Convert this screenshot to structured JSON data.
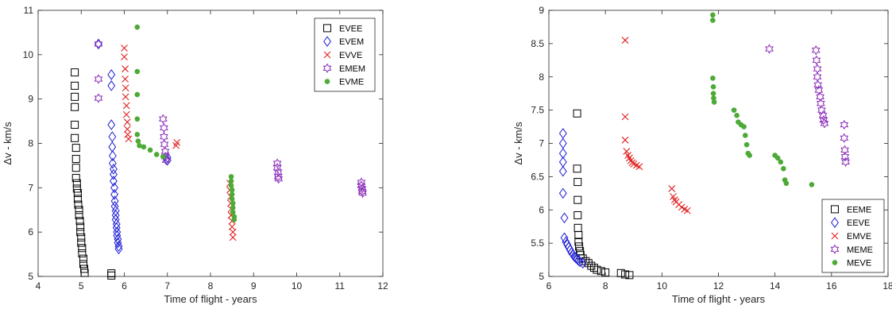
{
  "chart_data": [
    {
      "type": "scatter",
      "xlabel": "Time of flight - years",
      "ylabel": "Δv - km/s",
      "xlim": [
        4,
        12
      ],
      "ylim": [
        5,
        11
      ],
      "xticks": [
        "4",
        "5",
        "6",
        "7",
        "8",
        "9",
        "10",
        "11",
        "12"
      ],
      "yticks": [
        "5",
        "6",
        "7",
        "8",
        "9",
        "10",
        "11"
      ],
      "legend_position": "top-right",
      "series": [
        {
          "name": "EVEE",
          "marker": "square",
          "color": "#000000",
          "points": [
            [
              4.85,
              9.6
            ],
            [
              4.85,
              9.3
            ],
            [
              4.85,
              9.05
            ],
            [
              4.85,
              8.82
            ],
            [
              4.85,
              8.42
            ],
            [
              4.85,
              8.12
            ],
            [
              4.88,
              7.9
            ],
            [
              4.88,
              7.65
            ],
            [
              4.88,
              7.45
            ],
            [
              4.88,
              7.22
            ],
            [
              4.9,
              7.1
            ],
            [
              4.9,
              6.98
            ],
            [
              4.92,
              6.88
            ],
            [
              4.92,
              6.75
            ],
            [
              4.93,
              6.62
            ],
            [
              4.95,
              6.5
            ],
            [
              4.95,
              6.38
            ],
            [
              4.97,
              6.25
            ],
            [
              4.98,
              6.12
            ],
            [
              4.98,
              6.0
            ],
            [
              5.0,
              5.88
            ],
            [
              5.0,
              5.76
            ],
            [
              5.02,
              5.64
            ],
            [
              5.02,
              5.52
            ],
            [
              5.05,
              5.4
            ],
            [
              5.05,
              5.28
            ],
            [
              5.07,
              5.17
            ],
            [
              5.08,
              5.08
            ],
            [
              5.7,
              5.02
            ],
            [
              5.7,
              5.07
            ]
          ]
        },
        {
          "name": "EVEM",
          "marker": "diamond",
          "color": "#1f1fd6",
          "points": [
            [
              5.4,
              10.24
            ],
            [
              5.7,
              9.55
            ],
            [
              5.7,
              9.3
            ],
            [
              5.7,
              8.42
            ],
            [
              5.72,
              8.15
            ],
            [
              5.72,
              7.92
            ],
            [
              5.73,
              7.72
            ],
            [
              5.73,
              7.55
            ],
            [
              5.75,
              7.42
            ],
            [
              5.75,
              7.3
            ],
            [
              5.75,
              7.15
            ],
            [
              5.77,
              7.0
            ],
            [
              5.77,
              6.85
            ],
            [
              5.78,
              6.7
            ],
            [
              5.78,
              6.58
            ],
            [
              5.8,
              6.48
            ],
            [
              5.8,
              6.38
            ],
            [
              5.8,
              6.28
            ],
            [
              5.82,
              6.18
            ],
            [
              5.82,
              6.1
            ],
            [
              5.83,
              6.0
            ],
            [
              5.83,
              5.92
            ],
            [
              5.85,
              5.84
            ],
            [
              5.85,
              5.76
            ],
            [
              5.87,
              5.68
            ],
            [
              5.87,
              5.62
            ],
            [
              7.0,
              7.62
            ],
            [
              7.0,
              7.68
            ]
          ]
        },
        {
          "name": "EVVE",
          "marker": "x",
          "color": "#e02020",
          "points": [
            [
              6.0,
              10.15
            ],
            [
              6.0,
              9.95
            ],
            [
              6.02,
              9.68
            ],
            [
              6.02,
              9.45
            ],
            [
              6.03,
              9.25
            ],
            [
              6.03,
              9.05
            ],
            [
              6.05,
              8.85
            ],
            [
              6.05,
              8.65
            ],
            [
              6.07,
              8.48
            ],
            [
              6.07,
              8.32
            ],
            [
              6.08,
              8.2
            ],
            [
              6.1,
              8.1
            ],
            [
              7.2,
              7.95
            ],
            [
              7.22,
              8.02
            ],
            [
              8.45,
              7.1
            ],
            [
              8.45,
              6.95
            ],
            [
              8.47,
              6.8
            ],
            [
              8.47,
              6.65
            ],
            [
              8.48,
              6.52
            ],
            [
              8.48,
              6.38
            ],
            [
              8.5,
              6.25
            ],
            [
              8.5,
              6.12
            ],
            [
              8.52,
              6.0
            ],
            [
              8.52,
              5.88
            ]
          ]
        },
        {
          "name": "EMEM",
          "marker": "star",
          "color": "#8a2bb8",
          "points": [
            [
              5.4,
              9.45
            ],
            [
              5.4,
              9.02
            ],
            [
              5.4,
              10.24
            ],
            [
              6.9,
              8.55
            ],
            [
              6.92,
              8.35
            ],
            [
              6.92,
              8.15
            ],
            [
              6.93,
              7.98
            ],
            [
              6.95,
              7.82
            ],
            [
              6.95,
              7.7
            ],
            [
              6.97,
              7.62
            ],
            [
              9.55,
              7.55
            ],
            [
              9.55,
              7.45
            ],
            [
              9.57,
              7.35
            ],
            [
              9.57,
              7.25
            ],
            [
              9.58,
              7.2
            ],
            [
              11.5,
              7.12
            ],
            [
              11.5,
              7.05
            ],
            [
              11.52,
              6.98
            ],
            [
              11.52,
              6.92
            ],
            [
              11.53,
              6.88
            ]
          ]
        },
        {
          "name": "EVME",
          "marker": "dot",
          "color": "#4daa36",
          "points": [
            [
              6.3,
              10.62
            ],
            [
              6.3,
              9.62
            ],
            [
              6.3,
              9.1
            ],
            [
              6.3,
              8.55
            ],
            [
              6.3,
              8.2
            ],
            [
              6.32,
              8.05
            ],
            [
              6.35,
              7.95
            ],
            [
              6.45,
              7.92
            ],
            [
              6.6,
              7.85
            ],
            [
              6.75,
              7.75
            ],
            [
              6.9,
              7.7
            ],
            [
              8.48,
              7.25
            ],
            [
              8.48,
              7.15
            ],
            [
              8.48,
              7.05
            ],
            [
              8.5,
              6.95
            ],
            [
              8.5,
              6.85
            ],
            [
              8.5,
              6.75
            ],
            [
              8.52,
              6.65
            ],
            [
              8.52,
              6.55
            ],
            [
              8.52,
              6.45
            ],
            [
              8.55,
              6.35
            ],
            [
              8.55,
              6.28
            ]
          ]
        }
      ]
    },
    {
      "type": "scatter",
      "xlabel": "Time of flight - years",
      "ylabel": "Δv - km/s",
      "xlim": [
        6,
        18
      ],
      "ylim": [
        5,
        9
      ],
      "xticks": [
        "6",
        "8",
        "10",
        "12",
        "14",
        "16",
        "18"
      ],
      "yticks": [
        "5",
        "5.5",
        "6",
        "6.5",
        "7",
        "7.5",
        "8",
        "8.5",
        "9"
      ],
      "legend_position": "bottom-right",
      "series": [
        {
          "name": "EEME",
          "marker": "square",
          "color": "#000000",
          "points": [
            [
              7.0,
              7.45
            ],
            [
              7.0,
              6.62
            ],
            [
              7.02,
              6.42
            ],
            [
              7.02,
              6.15
            ],
            [
              7.02,
              5.92
            ],
            [
              7.03,
              5.73
            ],
            [
              7.05,
              5.62
            ],
            [
              7.05,
              5.52
            ],
            [
              7.07,
              5.45
            ],
            [
              7.1,
              5.38
            ],
            [
              7.12,
              5.32
            ],
            [
              7.2,
              5.27
            ],
            [
              7.3,
              5.23
            ],
            [
              7.4,
              5.2
            ],
            [
              7.5,
              5.16
            ],
            [
              7.6,
              5.13
            ],
            [
              7.7,
              5.1
            ],
            [
              7.85,
              5.08
            ],
            [
              8.0,
              5.06
            ],
            [
              8.55,
              5.05
            ],
            [
              8.7,
              5.03
            ],
            [
              8.85,
              5.02
            ]
          ]
        },
        {
          "name": "EEVE",
          "marker": "diamond",
          "color": "#1f1fd6",
          "points": [
            [
              6.5,
              7.15
            ],
            [
              6.5,
              7.0
            ],
            [
              6.5,
              6.85
            ],
            [
              6.5,
              6.72
            ],
            [
              6.5,
              6.58
            ],
            [
              6.5,
              6.25
            ],
            [
              6.55,
              5.88
            ],
            [
              6.55,
              5.58
            ],
            [
              6.6,
              5.52
            ],
            [
              6.65,
              5.48
            ],
            [
              6.7,
              5.44
            ],
            [
              6.75,
              5.4
            ],
            [
              6.8,
              5.36
            ],
            [
              6.85,
              5.33
            ],
            [
              6.9,
              5.3
            ],
            [
              6.95,
              5.28
            ],
            [
              7.0,
              5.26
            ],
            [
              7.05,
              5.24
            ],
            [
              7.1,
              5.22
            ],
            [
              7.2,
              5.2
            ]
          ]
        },
        {
          "name": "EMVE",
          "marker": "x",
          "color": "#e02020",
          "points": [
            [
              8.7,
              8.55
            ],
            [
              8.7,
              7.4
            ],
            [
              8.7,
              7.05
            ],
            [
              8.75,
              6.88
            ],
            [
              8.8,
              6.82
            ],
            [
              8.85,
              6.78
            ],
            [
              8.9,
              6.74
            ],
            [
              8.95,
              6.71
            ],
            [
              9.0,
              6.69
            ],
            [
              9.1,
              6.67
            ],
            [
              9.2,
              6.65
            ],
            [
              10.35,
              6.32
            ],
            [
              10.4,
              6.2
            ],
            [
              10.45,
              6.15
            ],
            [
              10.5,
              6.12
            ],
            [
              10.6,
              6.08
            ],
            [
              10.7,
              6.04
            ],
            [
              10.8,
              6.01
            ],
            [
              10.9,
              5.99
            ]
          ]
        },
        {
          "name": "MEME",
          "marker": "star",
          "color": "#8a2bb8",
          "points": [
            [
              13.8,
              8.42
            ],
            [
              15.45,
              8.4
            ],
            [
              15.47,
              8.25
            ],
            [
              15.5,
              8.12
            ],
            [
              15.5,
              8.0
            ],
            [
              15.52,
              7.88
            ],
            [
              15.55,
              7.8
            ],
            [
              15.6,
              7.7
            ],
            [
              15.62,
              7.6
            ],
            [
              15.65,
              7.5
            ],
            [
              15.7,
              7.42
            ],
            [
              15.72,
              7.35
            ],
            [
              15.75,
              7.3
            ],
            [
              16.45,
              7.28
            ],
            [
              16.45,
              7.08
            ],
            [
              16.47,
              6.9
            ],
            [
              16.48,
              6.8
            ],
            [
              16.5,
              6.72
            ]
          ]
        },
        {
          "name": "MEVE",
          "marker": "dot",
          "color": "#4daa36",
          "points": [
            [
              11.8,
              8.93
            ],
            [
              11.8,
              8.85
            ],
            [
              11.8,
              7.98
            ],
            [
              11.82,
              7.85
            ],
            [
              11.82,
              7.75
            ],
            [
              11.83,
              7.68
            ],
            [
              11.85,
              7.62
            ],
            [
              12.55,
              7.5
            ],
            [
              12.65,
              7.42
            ],
            [
              12.7,
              7.32
            ],
            [
              12.8,
              7.28
            ],
            [
              12.9,
              7.25
            ],
            [
              12.95,
              7.12
            ],
            [
              13.0,
              6.98
            ],
            [
              13.05,
              6.85
            ],
            [
              13.1,
              6.82
            ],
            [
              14.0,
              6.82
            ],
            [
              14.1,
              6.78
            ],
            [
              14.2,
              6.72
            ],
            [
              14.3,
              6.62
            ],
            [
              14.35,
              6.45
            ],
            [
              14.4,
              6.4
            ],
            [
              15.3,
              6.38
            ]
          ]
        }
      ]
    }
  ]
}
